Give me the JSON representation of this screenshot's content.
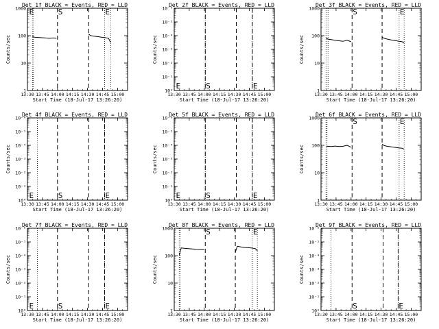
{
  "chart_data": [
    {
      "type": "line",
      "title": "Det 1f BLACK = Events, RED = LLD",
      "xlabel": "Start Time (18-Jul-17 13:26:20)",
      "ylabel": "Counts/sec",
      "yscale": "log",
      "ylim": [
        1,
        1000
      ],
      "ytick_labels": [
        "1",
        "10",
        "100",
        "1000"
      ],
      "xlim": [
        "13:30",
        "15:10"
      ],
      "xtick_labels": [
        "13:30",
        "13:45",
        "14:00",
        "14:15",
        "14:30",
        "14:45",
        "15:00"
      ],
      "dotted_lines": [
        "13:35",
        "13:36",
        "14:47",
        "14:53"
      ],
      "dashed_lines": [
        "14:00",
        "14:31"
      ],
      "markers": [
        {
          "text": "E",
          "t": "13:31",
          "pos": "top"
        },
        {
          "text": "S",
          "t": "14:00",
          "pos": "top"
        },
        {
          "text": "E",
          "t": "14:47",
          "pos": "top"
        }
      ],
      "series": [
        {
          "segments": [
            {
              "t": [
                "13:35",
                "13:37",
                "13:40",
                "13:44",
                "13:48",
                "13:52",
                "13:56",
                "13:59"
              ],
              "values": [
                92,
                88,
                86,
                84,
                82,
                80,
                82,
                80
              ]
            },
            {
              "t": [
                "14:31",
                "14:33",
                "14:36",
                "14:40",
                "14:44",
                "14:48",
                "14:51",
                "14:53"
              ],
              "values": [
                115,
                100,
                96,
                92,
                88,
                84,
                80,
                56
              ]
            }
          ]
        }
      ]
    },
    {
      "type": "line",
      "title": "Det 2f BLACK = Events, RED = LLD",
      "xlabel": "Start Time (18-Jul-17 13:26:20)",
      "ylabel": "Counts/sec",
      "yscale": "log",
      "ylim": [
        1e-06,
        1
      ],
      "ytick_labels": [
        "10⁻⁶",
        "10⁻⁵",
        "10⁻⁴",
        "10⁻³",
        "10⁻²",
        "10⁻¹",
        "10⁰"
      ],
      "ytick_order": "top-to-bottom",
      "xlim": [
        "13:30",
        "15:10"
      ],
      "xtick_labels": [
        "13:30",
        "13:45",
        "14:00",
        "14:15",
        "14:30",
        "14:45",
        "15:00"
      ],
      "dotted_lines": [
        "14:01",
        "14:48"
      ],
      "dashed_lines": [
        "14:01",
        "14:32",
        "14:48"
      ],
      "markers": [
        {
          "text": "E",
          "t": "13:31",
          "pos": "bottom"
        },
        {
          "text": "S",
          "t": "14:01",
          "pos": "bottom"
        },
        {
          "text": "E",
          "t": "14:48",
          "pos": "bottom"
        }
      ],
      "series": []
    },
    {
      "type": "line",
      "title": "Det 3f BLACK = Events, RED = LLD",
      "xlabel": "Start Time (18-Jul-17 13:26:20)",
      "ylabel": "Counts/sec",
      "yscale": "log",
      "ylim": [
        1,
        1000
      ],
      "ytick_labels": [
        "1",
        "10",
        "100",
        "1000"
      ],
      "xlim": [
        "13:30",
        "15:10"
      ],
      "xtick_labels": [
        "13:30",
        "13:45",
        "14:00",
        "14:15",
        "14:30",
        "14:45",
        "15:00"
      ],
      "dotted_lines": [
        "13:35",
        "13:37",
        "14:48",
        "14:53"
      ],
      "dashed_lines": [
        "14:01",
        "14:31"
      ],
      "markers": [
        {
          "text": "S",
          "t": "14:01",
          "pos": "top"
        },
        {
          "text": "E",
          "t": "14:48",
          "pos": "top"
        }
      ],
      "series": [
        {
          "segments": [
            {
              "t": [
                "13:35",
                "13:37",
                "13:40",
                "13:44",
                "13:48",
                "13:52",
                "13:56",
                "14:00"
              ],
              "values": [
                80,
                75,
                72,
                68,
                65,
                62,
                68,
                60
              ]
            },
            {
              "t": [
                "14:31",
                "14:33",
                "14:36",
                "14:40",
                "14:44",
                "14:48",
                "14:51",
                "14:53"
              ],
              "values": [
                88,
                80,
                75,
                70,
                66,
                62,
                60,
                55
              ]
            }
          ]
        }
      ]
    },
    {
      "type": "line",
      "title": "Det 4f BLACK = Events, RED = LLD",
      "xlabel": "Start Time (18-Jul-17 13:26:20)",
      "ylabel": "Counts/sec",
      "yscale": "log",
      "ylim": [
        1e-06,
        1
      ],
      "ytick_labels": [
        "10⁻⁶",
        "10⁻⁵",
        "10⁻⁴",
        "10⁻³",
        "10⁻²",
        "10⁻¹",
        "10⁰"
      ],
      "ytick_order": "top-to-bottom",
      "xlim": [
        "13:30",
        "15:10"
      ],
      "xtick_labels": [
        "13:30",
        "13:45",
        "14:00",
        "14:15",
        "14:30",
        "14:45",
        "15:00"
      ],
      "dotted_lines": [
        "13:40",
        "14:47"
      ],
      "dashed_lines": [
        "14:00",
        "14:31",
        "14:47"
      ],
      "markers": [
        {
          "text": "E",
          "t": "13:31",
          "pos": "bottom"
        },
        {
          "text": "S",
          "t": "14:00",
          "pos": "bottom"
        },
        {
          "text": "E",
          "t": "14:47",
          "pos": "bottom"
        }
      ],
      "series": []
    },
    {
      "type": "line",
      "title": "Det 5f BLACK = Events, RED = LLD",
      "xlabel": "Start Time (18-Jul-17 13:26:20)",
      "ylabel": "Counts/sec",
      "yscale": "log",
      "ylim": [
        1e-06,
        1
      ],
      "ytick_labels": [
        "10⁻⁶",
        "10⁻⁵",
        "10⁻⁴",
        "10⁻³",
        "10⁻²",
        "10⁻¹",
        "10⁰"
      ],
      "ytick_order": "top-to-bottom",
      "xlim": [
        "13:30",
        "15:10"
      ],
      "xtick_labels": [
        "13:30",
        "13:45",
        "14:00",
        "14:15",
        "14:30",
        "14:45",
        "15:00"
      ],
      "dotted_lines": [
        "14:01",
        "14:48"
      ],
      "dashed_lines": [
        "14:01",
        "14:32",
        "14:48"
      ],
      "markers": [
        {
          "text": "E",
          "t": "13:31",
          "pos": "bottom"
        },
        {
          "text": "S",
          "t": "14:01",
          "pos": "bottom"
        },
        {
          "text": "E",
          "t": "14:48",
          "pos": "bottom"
        }
      ],
      "series": []
    },
    {
      "type": "line",
      "title": "Det 6f BLACK = Events, RED = LLD",
      "xlabel": "Start Time (18-Jul-17 13:26:20)",
      "ylabel": "Counts/sec",
      "yscale": "log",
      "ylim": [
        1,
        1000
      ],
      "ytick_labels": [
        "1",
        "10",
        "100",
        "1000"
      ],
      "xlim": [
        "13:30",
        "15:10"
      ],
      "xtick_labels": [
        "13:30",
        "13:45",
        "14:00",
        "14:15",
        "14:30",
        "14:45",
        "15:00"
      ],
      "dotted_lines": [
        "13:35",
        "13:36",
        "14:48",
        "14:53"
      ],
      "dashed_lines": [
        "14:01",
        "14:31"
      ],
      "markers": [
        {
          "text": "S",
          "t": "14:01",
          "pos": "top"
        },
        {
          "text": "E",
          "t": "14:48",
          "pos": "top"
        }
      ],
      "series": [
        {
          "segments": [
            {
              "t": [
                "13:35",
                "13:37",
                "13:40",
                "13:44",
                "13:48",
                "13:52",
                "13:56",
                "14:00"
              ],
              "values": [
                88,
                92,
                90,
                94,
                90,
                92,
                100,
                85
              ]
            },
            {
              "t": [
                "14:31",
                "14:33",
                "14:36",
                "14:40",
                "14:44",
                "14:48",
                "14:51",
                "14:53"
              ],
              "values": [
                110,
                98,
                92,
                88,
                84,
                80,
                78,
                72
              ]
            }
          ]
        }
      ]
    },
    {
      "type": "line",
      "title": "Det 7f BLACK = Events, RED = LLD",
      "xlabel": "Start Time (18-Jul-17 13:26:20)",
      "ylabel": "Counts/sec",
      "yscale": "log",
      "ylim": [
        1e-06,
        1
      ],
      "ytick_labels": [
        "10⁻⁶",
        "10⁻⁵",
        "10⁻⁴",
        "10⁻³",
        "10⁻²",
        "10⁻¹",
        "10⁰"
      ],
      "ytick_order": "top-to-bottom",
      "xlim": [
        "13:30",
        "15:10"
      ],
      "xtick_labels": [
        "13:30",
        "13:45",
        "14:00",
        "14:15",
        "14:30",
        "14:45",
        "15:00"
      ],
      "dotted_lines": [
        "13:40",
        "14:47"
      ],
      "dashed_lines": [
        "14:00",
        "14:31",
        "14:47"
      ],
      "markers": [
        {
          "text": "E",
          "t": "13:31",
          "pos": "bottom"
        },
        {
          "text": "S",
          "t": "14:00",
          "pos": "bottom"
        },
        {
          "text": "E",
          "t": "14:47",
          "pos": "bottom"
        }
      ],
      "series": []
    },
    {
      "type": "line",
      "title": "Det 8f BLACK = Events, RED = LLD",
      "xlabel": "Start Time (18-Jul-17 13:26:20)",
      "ylabel": "Counts/sec",
      "yscale": "log",
      "ylim": [
        1,
        1000
      ],
      "ytick_labels": [
        "1",
        "10",
        "100",
        "1000"
      ],
      "xlim": [
        "13:30",
        "15:10"
      ],
      "xtick_labels": [
        "13:30",
        "13:45",
        "14:00",
        "14:15",
        "14:30",
        "14:45",
        "15:00"
      ],
      "dotted_lines": [
        "13:35",
        "13:36",
        "14:48",
        "14:53"
      ],
      "dashed_lines": [
        "14:01",
        "14:31"
      ],
      "markers": [
        {
          "text": "S",
          "t": "14:01",
          "pos": "top"
        },
        {
          "text": "E",
          "t": "14:48",
          "pos": "top"
        }
      ],
      "series": [
        {
          "segments": [
            {
              "t": [
                "13:35",
                "13:37",
                "13:40",
                "13:44",
                "13:48",
                "13:52",
                "13:56",
                "14:00"
              ],
              "values": [
                105,
                190,
                185,
                180,
                176,
                172,
                170,
                168
              ]
            },
            {
              "t": [
                "14:31",
                "14:33",
                "14:36",
                "14:40",
                "14:44",
                "14:48",
                "14:51",
                "14:53"
              ],
              "values": [
                135,
                220,
                210,
                200,
                195,
                188,
                180,
                150
              ]
            }
          ]
        }
      ]
    },
    {
      "type": "line",
      "title": "Det 9f BLACK = Events, RED = LLD",
      "xlabel": "Start Time (18-Jul-17 13:26:20)",
      "ylabel": "Counts/sec",
      "yscale": "log",
      "ylim": [
        1e-06,
        1
      ],
      "ytick_labels": [
        "10⁻⁶",
        "10⁻⁵",
        "10⁻⁴",
        "10⁻³",
        "10⁻²",
        "10⁻¹",
        "10⁰"
      ],
      "ytick_order": "top-to-bottom",
      "xlim": [
        "13:30",
        "15:10"
      ],
      "xtick_labels": [
        "13:30",
        "13:45",
        "14:00",
        "14:15",
        "14:30",
        "14:45",
        "15:00"
      ],
      "dotted_lines": [
        "13:40",
        "14:47"
      ],
      "dashed_lines": [
        "14:01",
        "14:32",
        "14:47"
      ],
      "markers": [
        {
          "text": "S",
          "t": "14:01",
          "pos": "bottom"
        },
        {
          "text": "E",
          "t": "14:47",
          "pos": "bottom"
        }
      ],
      "series": []
    }
  ]
}
